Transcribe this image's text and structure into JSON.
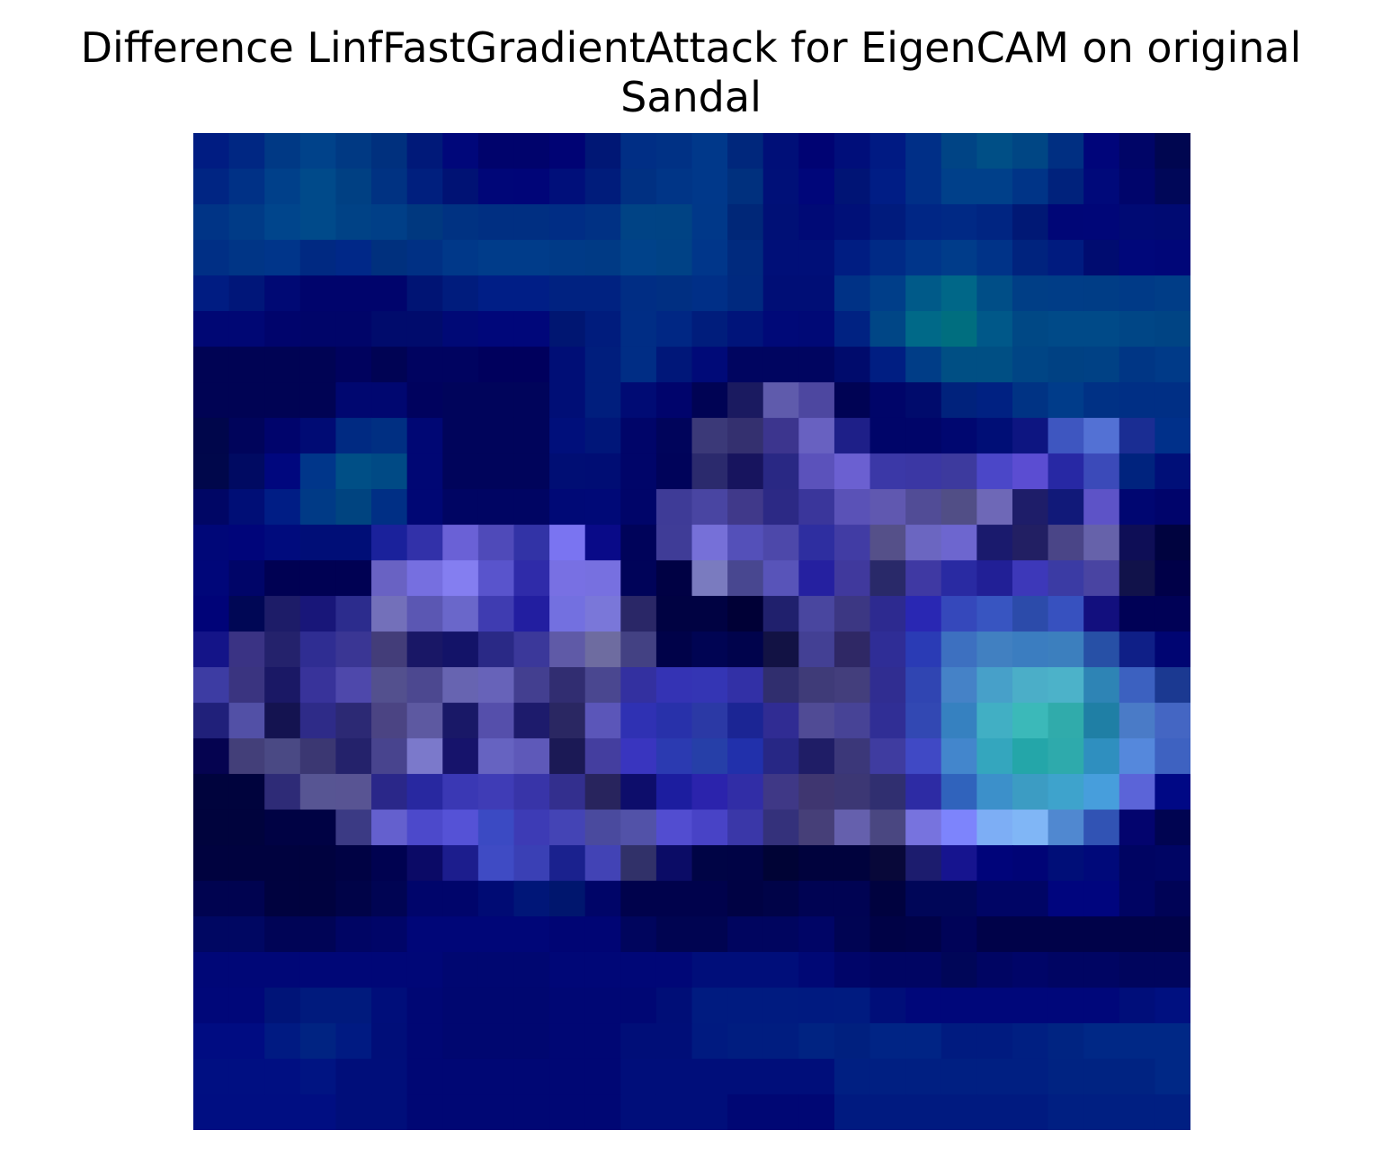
{
  "chart_data": {
    "type": "heatmap",
    "title_lines": [
      "Difference LinfFastGradientAttack for EigenCAM on original",
      "Sandal"
    ],
    "xlabel": "",
    "ylabel": "",
    "axes_visible": false,
    "grid": false,
    "rows": 28,
    "cols": 28,
    "colors": [
      [
        "#001C82",
        "#002783",
        "#003985",
        "#00428A",
        "#003983",
        "#00307E",
        "#001979",
        "#00077A",
        "#00036C",
        "#00036C",
        "#000374",
        "#001775",
        "#002E85",
        "#003185",
        "#00388A",
        "#00277C",
        "#000F78",
        "#000373",
        "#000E7A",
        "#001A83",
        "#002F87",
        "#004485",
        "#004F86",
        "#004684",
        "#002F82",
        "#00057A",
        "#000567",
        "#000650"
      ],
      [
        "#002583",
        "#003186",
        "#00408A",
        "#004A8A",
        "#004083",
        "#003282",
        "#001F7E",
        "#001274",
        "#000678",
        "#000578",
        "#000F7A",
        "#001C7B",
        "#003082",
        "#003587",
        "#00388A",
        "#00307E",
        "#001078",
        "#00067A",
        "#001475",
        "#001D85",
        "#002F87",
        "#00408A",
        "#00408A",
        "#003487",
        "#00227C",
        "#00097A",
        "#00056B",
        "#000758"
      ],
      [
        "#003486",
        "#003B87",
        "#00458C",
        "#004A8A",
        "#004286",
        "#003F87",
        "#00387F",
        "#003282",
        "#002F82",
        "#002F82",
        "#002D85",
        "#003184",
        "#004385",
        "#004384",
        "#003889",
        "#002778",
        "#001076",
        "#000A76",
        "#001078",
        "#001B7D",
        "#002685",
        "#002985",
        "#002582",
        "#001875",
        "#000677",
        "#000678",
        "#000A74",
        "#000A72"
      ],
      [
        "#002F85",
        "#003586",
        "#00358A",
        "#002982",
        "#002888",
        "#00307E",
        "#003084",
        "#003889",
        "#003C8A",
        "#003C8A",
        "#003A87",
        "#003A85",
        "#00428A",
        "#004286",
        "#00368A",
        "#002A7E",
        "#000F78",
        "#000F78",
        "#001D82",
        "#002A86",
        "#00358A",
        "#003C8A",
        "#003388",
        "#00237E",
        "#001B7F",
        "#000C70",
        "#00077A",
        "#000678"
      ],
      [
        "#001C82",
        "#001679",
        "#000974",
        "#00046C",
        "#00046C",
        "#00046C",
        "#001474",
        "#001C7D",
        "#001E86",
        "#001E86",
        "#002281",
        "#002281",
        "#002D84",
        "#002F82",
        "#002F87",
        "#00297F",
        "#000E76",
        "#000E76",
        "#003286",
        "#003E89",
        "#005A89",
        "#006788",
        "#004E87",
        "#003E86",
        "#003D87",
        "#003D86",
        "#003A87",
        "#003D87"
      ],
      [
        "#000774",
        "#000774",
        "#00046C",
        "#000569",
        "#000569",
        "#000B6C",
        "#000B6C",
        "#000976",
        "#00077A",
        "#00077A",
        "#001672",
        "#001C7D",
        "#002D85",
        "#002784",
        "#001D7C",
        "#00147A",
        "#000978",
        "#000976",
        "#002282",
        "#004686",
        "#006988",
        "#006E7F",
        "#005889",
        "#004885",
        "#004A88",
        "#004A88",
        "#004686",
        "#004484"
      ],
      [
        "#000354",
        "#000354",
        "#000354",
        "#000354",
        "#00025E",
        "#000354",
        "#000360",
        "#000360",
        "#00005D",
        "#00005D",
        "#000E76",
        "#001E7D",
        "#002D85",
        "#001779",
        "#000A78",
        "#000560",
        "#000560",
        "#000560",
        "#000B6C",
        "#001E82",
        "#003D87",
        "#004F84",
        "#004F84",
        "#004585",
        "#004183",
        "#004185",
        "#003685",
        "#003A88"
      ],
      [
        "#000354",
        "#000354",
        "#000354",
        "#000354",
        "#000770",
        "#000770",
        "#00025E",
        "#00045B",
        "#00045B",
        "#00045B",
        "#000E76",
        "#001E7D",
        "#000B74",
        "#00046C",
        "#000354",
        "#1A1A60",
        "#5F5BAC",
        "#4D47A0",
        "#000354",
        "#000569",
        "#000B6C",
        "#00227C",
        "#002182",
        "#003384",
        "#003C8A",
        "#003185",
        "#002F85",
        "#002F85"
      ],
      [
        "#00064B",
        "#00045B",
        "#00046C",
        "#000B74",
        "#002A82",
        "#002F82",
        "#000774",
        "#00045B",
        "#00045B",
        "#00045B",
        "#000F7B",
        "#001679",
        "#000569",
        "#00045B",
        "#3B3978",
        "#34306F",
        "#3C358E",
        "#6861C1",
        "#1E1F88",
        "#000569",
        "#000569",
        "#000770",
        "#000E76",
        "#0D1581",
        "#3E56C0",
        "#5371D4",
        "#1A2D93",
        "#00308A"
      ],
      [
        "#00074B",
        "#000A62",
        "#00077E",
        "#00368A",
        "#004F86",
        "#004A85",
        "#000774",
        "#00045B",
        "#00045B",
        "#00045B",
        "#000E74",
        "#000D74",
        "#000569",
        "#00035A",
        "#2B2A6D",
        "#17145E",
        "#292884",
        "#5B52BB",
        "#6B60D1",
        "#3B38A7",
        "#3B37A4",
        "#3D3A9E",
        "#4B47C8",
        "#5B4DD2",
        "#2728A4",
        "#3B4AB9",
        "#00237E",
        "#000F78"
      ],
      [
        "#000665",
        "#000E76",
        "#001D85",
        "#003A86",
        "#004480",
        "#002F85",
        "#000774",
        "#000563",
        "#000563",
        "#000563",
        "#000976",
        "#000977",
        "#000569",
        "#3E3B97",
        "#4945A2",
        "#40398A",
        "#2C2985",
        "#3A369B",
        "#5A52B7",
        "#6058B0",
        "#514C96",
        "#514E86",
        "#6E68B7",
        "#1E1D69",
        "#111979",
        "#5D53C7",
        "#000671",
        "#00046B"
      ],
      [
        "#000778",
        "#00057A",
        "#000B7D",
        "#000E77",
        "#000E77",
        "#1A219B",
        "#3231A9",
        "#6A61D6",
        "#4F4AB9",
        "#3233A6",
        "#7A74F1",
        "#090A88",
        "#00035A",
        "#3F3C97",
        "#7670D8",
        "#5450B9",
        "#4D48AA",
        "#2E2EA0",
        "#413CA4",
        "#555089",
        "#6B66C1",
        "#6D66CF",
        "#1A1A6D",
        "#221F63",
        "#4A4587",
        "#6662AA",
        "#0E0E56",
        "#00033F"
      ],
      [
        "#000679",
        "#000568",
        "#000153",
        "#000153",
        "#000153",
        "#6962C3",
        "#766FE0",
        "#847EF0",
        "#5954CC",
        "#2F2BA9",
        "#7870E3",
        "#7770E0",
        "#000359",
        "#000144",
        "#7A7BBF",
        "#484790",
        "#5854B9",
        "#2520A0",
        "#40399D",
        "#292969",
        "#3F39A3",
        "#292AA2",
        "#211F96",
        "#3D38B9",
        "#3B3BA4",
        "#4944A2",
        "#11124A",
        "#000048"
      ],
      [
        "#000378",
        "#000755",
        "#1D1C68",
        "#181679",
        "#2C2C8D",
        "#7370BA",
        "#5B57B3",
        "#6A67CA",
        "#3F3CB1",
        "#221EA0",
        "#7370E0",
        "#7A77D9",
        "#2A2767",
        "#000242",
        "#000242",
        "#000036",
        "#20206D",
        "#49469F",
        "#3C3783",
        "#2D2A90",
        "#2927B3",
        "#3548BB",
        "#3855C1",
        "#2C4BAA",
        "#3751BF",
        "#120F7E",
        "#000156",
        "#000156"
      ],
      [
        "#141488",
        "#3A3384",
        "#24226C",
        "#2F2D92",
        "#3A3694",
        "#433D79",
        "#191766",
        "#131368",
        "#2A2986",
        "#3B389A",
        "#5F5AA7",
        "#6E6CA0",
        "#434183",
        "#000249",
        "#000453",
        "#00034C",
        "#121244",
        "#434094",
        "#2F2865",
        "#2F2D96",
        "#2A3BB5",
        "#3D70C0",
        "#4180C1",
        "#3B7DC0",
        "#3C7FBE",
        "#2750A6",
        "#0F1F87",
        "#000572"
      ],
      [
        "#3D3CA3",
        "#3A3480",
        "#1A1865",
        "#38339A",
        "#4E48AB",
        "#53508E",
        "#4C4890",
        "#6764B1",
        "#6763B9",
        "#433F90",
        "#312D71",
        "#4A4790",
        "#3330A0",
        "#3433B4",
        "#3435B4",
        "#3230A6",
        "#302E6E",
        "#3F3B78",
        "#433E7C",
        "#302D91",
        "#3045B2",
        "#4582C7",
        "#47A0C9",
        "#4BAEC8",
        "#4CB2C9",
        "#2E84B5",
        "#3C61C0",
        "#1B3991"
      ],
      [
        "#20207A",
        "#5250A6",
        "#141350",
        "#2E2B88",
        "#2C2974",
        "#4B4483",
        "#5D59A1",
        "#191867",
        "#554FAB",
        "#1D1B6C",
        "#2A2762",
        "#5B56B9",
        "#2F31B3",
        "#2831AA",
        "#2B39A5",
        "#1B2594",
        "#302C93",
        "#504B95",
        "#474396",
        "#302E95",
        "#3248B3",
        "#3681C0",
        "#41AFC4",
        "#3BB9B9",
        "#30ABAB",
        "#1F7FA5",
        "#4A7BC7",
        "#4466C3"
      ],
      [
        "#050350",
        "#433F79",
        "#4A4984",
        "#3B3772",
        "#24226B",
        "#48448E",
        "#7B79CB",
        "#16136B",
        "#6663C1",
        "#5E59B9",
        "#1B1955",
        "#443E9F",
        "#3935BF",
        "#2B3AB1",
        "#263FA8",
        "#2130AB",
        "#272785",
        "#1F1D66",
        "#3B3779",
        "#3F3CA0",
        "#4049C5",
        "#4386CC",
        "#34A6BE",
        "#24A6A9",
        "#2EAAAC",
        "#2F8FBF",
        "#5588DC",
        "#3E62C1"
      ],
      [
        "#00033D",
        "#00033D",
        "#2E2B77",
        "#575593",
        "#585493",
        "#2A2789",
        "#2828A0",
        "#3A38B4",
        "#3F3CB6",
        "#3834A8",
        "#332F8E",
        "#28245D",
        "#0D0D6B",
        "#1C1D9F",
        "#2B23AC",
        "#312DA6",
        "#3F3886",
        "#3F3670",
        "#3C3774",
        "#302F70",
        "#2D2BA4",
        "#3063BC",
        "#3C90CA",
        "#3C9CC3",
        "#3EA3CC",
        "#479EDC",
        "#5B64D8",
        "#000885"
      ],
      [
        "#00033D",
        "#00033D",
        "#000244",
        "#000244",
        "#3B3A84",
        "#6460CE",
        "#4C49CB",
        "#5552D6",
        "#3B4AC3",
        "#3D3BB5",
        "#4444B5",
        "#4A4A9E",
        "#5252A8",
        "#524DD0",
        "#4843C6",
        "#3A37A8",
        "#34317B",
        "#463F78",
        "#6560AD",
        "#4A4781",
        "#7773DE",
        "#7D84FC",
        "#7DAEF5",
        "#80B6F6",
        "#5088D0",
        "#3153B4",
        "#03046E",
        "#000451"
      ],
      [
        "#00023F",
        "#00023F",
        "#00023F",
        "#00023F",
        "#000244",
        "#000250",
        "#0B0A66",
        "#1C1D8D",
        "#3F4BC4",
        "#3A40B5",
        "#1A218E",
        "#4243B5",
        "#313169",
        "#0B0C66",
        "#000445",
        "#000345",
        "#000335",
        "#00023D",
        "#00023D",
        "#080839",
        "#1C1C6E",
        "#16148F",
        "#00047A",
        "#000476",
        "#000E78",
        "#00097A",
        "#000462",
        "#000564"
      ],
      [
        "#000350",
        "#000350",
        "#00023F",
        "#00023F",
        "#000348",
        "#000453",
        "#00056B",
        "#00056B",
        "#000B74",
        "#001678",
        "#00166E",
        "#000568",
        "#00024C",
        "#00024C",
        "#00024C",
        "#000244",
        "#000348",
        "#000353",
        "#000353",
        "#00023F",
        "#000658",
        "#000658",
        "#000565",
        "#000565",
        "#00057E",
        "#00057E",
        "#000463",
        "#000356"
      ],
      [
        "#000762",
        "#000762",
        "#000456",
        "#000456",
        "#000564",
        "#000568",
        "#000678",
        "#000678",
        "#000678",
        "#000678",
        "#000574",
        "#000574",
        "#00055D",
        "#000451",
        "#000451",
        "#00055F",
        "#00055F",
        "#000566",
        "#000453",
        "#000246",
        "#000249",
        "#000358",
        "#000249",
        "#000249",
        "#000249",
        "#000249",
        "#000249",
        "#000249"
      ],
      [
        "#000777",
        "#000777",
        "#000777",
        "#000777",
        "#000777",
        "#000777",
        "#000777",
        "#000771",
        "#000771",
        "#000771",
        "#000777",
        "#000777",
        "#000777",
        "#000777",
        "#000E7A",
        "#000E7A",
        "#000E7A",
        "#000875",
        "#000569",
        "#000563",
        "#000563",
        "#000658",
        "#000563",
        "#000568",
        "#000563",
        "#000563",
        "#00055D",
        "#00055D"
      ],
      [
        "#000779",
        "#000779",
        "#001478",
        "#001A7D",
        "#001A7D",
        "#000E7A",
        "#000774",
        "#000770",
        "#000770",
        "#000770",
        "#000774",
        "#000774",
        "#000774",
        "#000E77",
        "#001B80",
        "#001B80",
        "#001B80",
        "#001A80",
        "#001B80",
        "#000E79",
        "#00077A",
        "#00077A",
        "#00077A",
        "#00077A",
        "#00077A",
        "#00077A",
        "#000E7A",
        "#001080"
      ],
      [
        "#000C82",
        "#000C82",
        "#001A82",
        "#002382",
        "#001A82",
        "#000E79",
        "#000774",
        "#000770",
        "#000770",
        "#000770",
        "#000774",
        "#000774",
        "#000E78",
        "#000E78",
        "#001A80",
        "#001D80",
        "#001D80",
        "#002382",
        "#00207F",
        "#002485",
        "#002485",
        "#001B80",
        "#001B80",
        "#001F82",
        "#002482",
        "#002886",
        "#002886",
        "#002886"
      ],
      [
        "#000F82",
        "#000F82",
        "#000F82",
        "#001482",
        "#000E7A",
        "#000E7A",
        "#000774",
        "#000774",
        "#000774",
        "#000774",
        "#000774",
        "#000774",
        "#000E7A",
        "#000E7A",
        "#000E7A",
        "#000E7A",
        "#000E7A",
        "#000E7A",
        "#001F82",
        "#001F82",
        "#001F82",
        "#001F82",
        "#001F82",
        "#001F82",
        "#002382",
        "#002382",
        "#002382",
        "#002886"
      ],
      [
        "#000E82",
        "#000E82",
        "#000E82",
        "#000E82",
        "#000E7A",
        "#000E7A",
        "#000774",
        "#000774",
        "#000774",
        "#000774",
        "#000774",
        "#000774",
        "#000E7A",
        "#000E7A",
        "#000E7A",
        "#000774",
        "#000774",
        "#000774",
        "#001A80",
        "#001A80",
        "#001A80",
        "#001A80",
        "#001A80",
        "#001A80",
        "#001F82",
        "#001F82",
        "#001F82",
        "#001F82"
      ]
    ]
  }
}
